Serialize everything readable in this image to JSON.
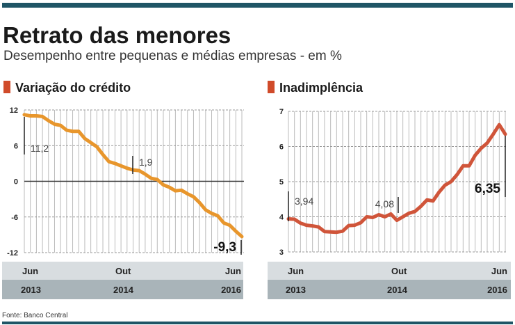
{
  "header": {
    "title": "Retrato das menores",
    "subtitle": "Desempenho entre pequenas e médias empresas - em %"
  },
  "source": "Fonte: Banco Central",
  "colors": {
    "bar": "#1f5566",
    "credit": "#e8962c",
    "default": "#d0553a",
    "marker_credit": "#d04b2a",
    "band_light": "#d8dde0",
    "band_dark": "#a9b4b9"
  },
  "chart_data": [
    {
      "type": "line",
      "title": "Variação do crédito",
      "x_labels": [
        {
          "month": "Jun",
          "year": "2013"
        },
        {
          "month": "Out",
          "year": "2014"
        },
        {
          "month": "Jun",
          "year": "2016"
        }
      ],
      "x_range": [
        "Jun 2013",
        "Jun 2016"
      ],
      "y_ticks": [
        "12",
        "6",
        "0",
        "-6",
        "-12"
      ],
      "ylim": [
        -12,
        12
      ],
      "grid": true,
      "values": [
        11.2,
        11.0,
        11.0,
        10.9,
        10.2,
        9.6,
        9.4,
        8.6,
        8.4,
        8.4,
        7.2,
        6.5,
        5.8,
        4.5,
        3.3,
        3.0,
        2.6,
        2.2,
        1.9,
        1.8,
        1.2,
        0.5,
        0.3,
        -0.6,
        -1.0,
        -1.6,
        -1.5,
        -2.1,
        -2.6,
        -3.6,
        -4.8,
        -5.4,
        -5.8,
        -7.0,
        -7.4,
        -8.4,
        -9.3
      ],
      "annotations": [
        "11,2",
        "1,9",
        "-9,3"
      ]
    },
    {
      "type": "line",
      "title": "Inadimplência",
      "x_labels": [
        {
          "month": "Jun",
          "year": "2013"
        },
        {
          "month": "Out",
          "year": "2014"
        },
        {
          "month": "Jun",
          "year": "2016"
        }
      ],
      "x_range": [
        "Jun 2013",
        "Jun 2016"
      ],
      "y_ticks": [
        "7",
        "6",
        "5",
        "4",
        "3"
      ],
      "ylim": [
        3,
        7
      ],
      "grid": true,
      "values": [
        3.94,
        3.93,
        3.82,
        3.76,
        3.74,
        3.71,
        3.58,
        3.57,
        3.56,
        3.59,
        3.75,
        3.76,
        3.83,
        4.0,
        3.98,
        4.06,
        4.0,
        4.08,
        3.9,
        4.0,
        4.1,
        4.15,
        4.3,
        4.48,
        4.45,
        4.7,
        4.9,
        5.0,
        5.2,
        5.45,
        5.45,
        5.75,
        5.95,
        6.1,
        6.35,
        6.62,
        6.35
      ],
      "annotations": [
        "3,94",
        "4,08",
        "6,35"
      ]
    }
  ]
}
